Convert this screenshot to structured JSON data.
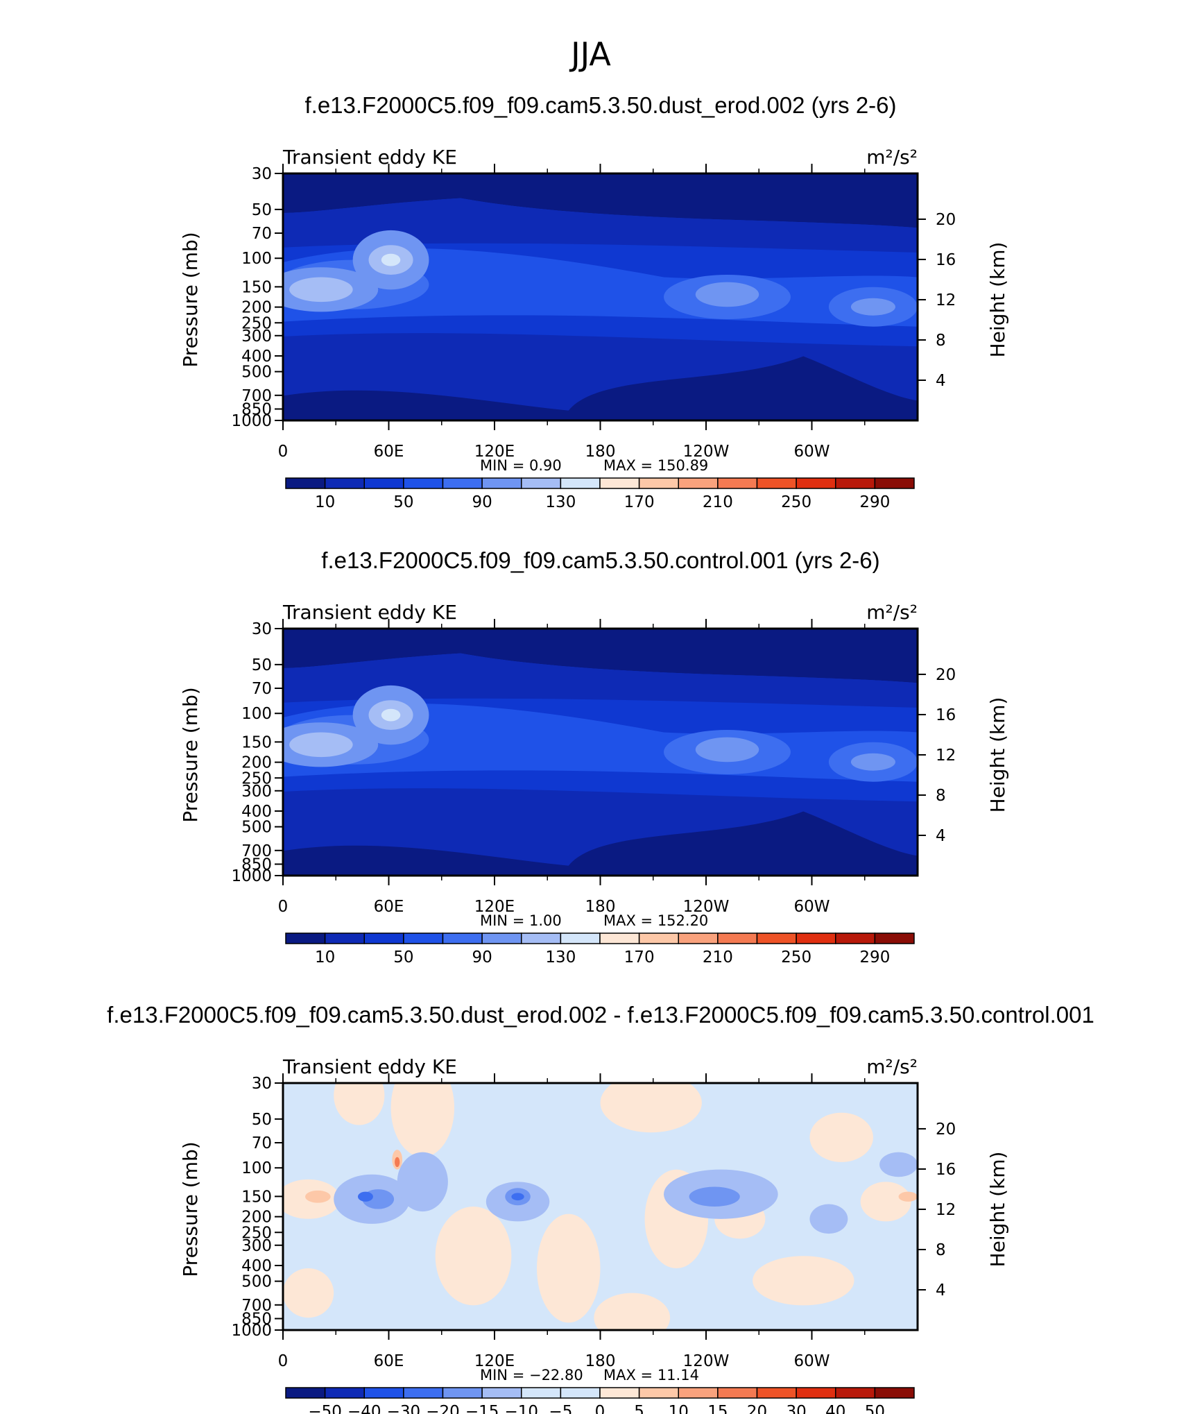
{
  "figure_title": "JJA",
  "chart_data": [
    {
      "type": "heatmap",
      "title": "f.e13.F2000C5.f09_f09.cam5.3.50.dust_erod.002 (yrs 2-6)",
      "left_label": "Transient eddy KE",
      "units": "m²/s²",
      "ylabel": "Pressure (mb)",
      "y2label": "Height (km)",
      "x_ticks": [
        "0",
        "60E",
        "120E",
        "180",
        "120W",
        "60W"
      ],
      "y_ticks": [
        "30",
        "50",
        "70",
        "100",
        "150",
        "200",
        "250",
        "300",
        "400",
        "500",
        "700",
        "850",
        "1000"
      ],
      "y2_ticks": [
        "20",
        "16",
        "12",
        "8",
        "4"
      ],
      "min_text": "MIN =     0.90",
      "max_text": "MAX  =  150.89",
      "min": 0.9,
      "max": 150.89,
      "colorbar_labels": [
        "10",
        "50",
        "90",
        "130",
        "170",
        "210",
        "250",
        "290"
      ],
      "colorbar_levels": [
        0,
        10,
        30,
        50,
        70,
        90,
        110,
        130,
        150,
        170,
        190,
        210,
        230,
        250,
        270,
        290,
        310
      ]
    },
    {
      "type": "heatmap",
      "title": "f.e13.F2000C5.f09_f09.cam5.3.50.control.001 (yrs 2-6)",
      "left_label": "Transient eddy KE",
      "units": "m²/s²",
      "ylabel": "Pressure (mb)",
      "y2label": "Height (km)",
      "x_ticks": [
        "0",
        "60E",
        "120E",
        "180",
        "120W",
        "60W"
      ],
      "y_ticks": [
        "30",
        "50",
        "70",
        "100",
        "150",
        "200",
        "250",
        "300",
        "400",
        "500",
        "700",
        "850",
        "1000"
      ],
      "y2_ticks": [
        "20",
        "16",
        "12",
        "8",
        "4"
      ],
      "min_text": "MIN =     1.00",
      "max_text": "MAX  =  152.20",
      "min": 1.0,
      "max": 152.2,
      "colorbar_labels": [
        "10",
        "50",
        "90",
        "130",
        "170",
        "210",
        "250",
        "290"
      ],
      "colorbar_levels": [
        0,
        10,
        30,
        50,
        70,
        90,
        110,
        130,
        150,
        170,
        190,
        210,
        230,
        250,
        270,
        290,
        310
      ]
    },
    {
      "type": "heatmap",
      "title": "f.e13.F2000C5.f09_f09.cam5.3.50.dust_erod.002 - f.e13.F2000C5.f09_f09.cam5.3.50.control.001",
      "left_label": "Transient eddy KE",
      "units": "m²/s²",
      "ylabel": "Pressure (mb)",
      "y2label": "Height (km)",
      "x_ticks": [
        "0",
        "60E",
        "120E",
        "180",
        "120W",
        "60W"
      ],
      "y_ticks": [
        "30",
        "50",
        "70",
        "100",
        "150",
        "200",
        "250",
        "300",
        "400",
        "500",
        "700",
        "850",
        "1000"
      ],
      "y2_ticks": [
        "20",
        "16",
        "12",
        "8",
        "4"
      ],
      "min_text": "MIN =  −22.80",
      "max_text": "MAX  =    11.14",
      "min": -22.8,
      "max": 11.14,
      "colorbar_labels": [
        "−50",
        "−40",
        "−30",
        "−20",
        "−15",
        "−10",
        "−5",
        "0",
        "5",
        "10",
        "15",
        "20",
        "30",
        "40",
        "50"
      ],
      "colorbar_levels": [
        -50,
        -40,
        -30,
        -20,
        -15,
        -10,
        -5,
        0,
        5,
        10,
        15,
        20,
        30,
        40,
        50
      ]
    }
  ],
  "colors": {
    "palette": [
      "#0a1a82",
      "#0e2ab5",
      "#0f38d1",
      "#1f52e8",
      "#3d6ef0",
      "#6f95f2",
      "#a5bdf5",
      "#d4e6fa",
      "#fde7d6",
      "#fdc8a8",
      "#f9a27d",
      "#f47a52",
      "#ee5327",
      "#e02f10",
      "#b8190a",
      "#8a0d06"
    ],
    "diff_palette": [
      "#0a1a82",
      "#0e2ab5",
      "#1f52e8",
      "#3d6ef0",
      "#6f95f2",
      "#a5bdf5",
      "#d4e6fa",
      "#d4e6fa",
      "#fde7d6",
      "#fdc8a8",
      "#f9a27d",
      "#f47a52",
      "#ee5327",
      "#e02f10",
      "#b8190a",
      "#8a0d06"
    ]
  }
}
